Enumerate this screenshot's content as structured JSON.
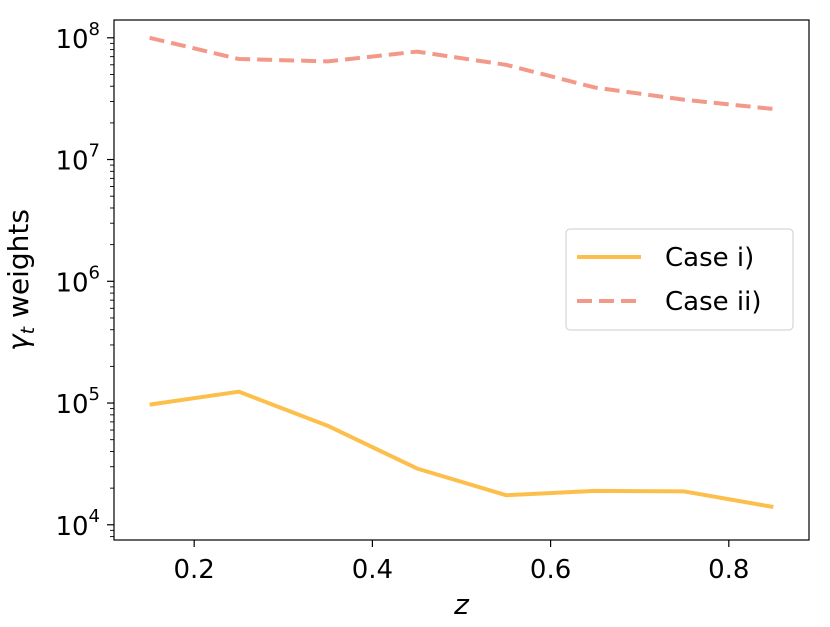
{
  "chart_data": {
    "type": "line",
    "xlabel": "z",
    "ylabel_main": "γ",
    "ylabel_sub": "t",
    "ylabel_rest": " weights",
    "yscale": "log",
    "xlim": [
      0.11,
      0.89
    ],
    "ylim": [
      7500,
      140000000
    ],
    "x_ticks": [
      0.2,
      0.4,
      0.6,
      0.8
    ],
    "x_tick_labels": [
      "0.2",
      "0.4",
      "0.6",
      "0.8"
    ],
    "y_ticks": [
      10000,
      100000,
      1000000,
      10000000,
      100000000
    ],
    "y_tick_labels": [
      {
        "base": "10",
        "exp": "4"
      },
      {
        "base": "10",
        "exp": "5"
      },
      {
        "base": "10",
        "exp": "6"
      },
      {
        "base": "10",
        "exp": "7"
      },
      {
        "base": "10",
        "exp": "8"
      }
    ],
    "grid": false,
    "legend_position": "center-right",
    "series": [
      {
        "name": "Case i)",
        "color": "#fdbf4c",
        "dash": "solid",
        "x": [
          0.15,
          0.25,
          0.35,
          0.45,
          0.55,
          0.65,
          0.75,
          0.85
        ],
        "y": [
          97000,
          124000,
          65000,
          29000,
          17500,
          19000,
          18800,
          14000
        ]
      },
      {
        "name": "Case ii)",
        "color": "#f2998a",
        "dash": "dashed",
        "x": [
          0.15,
          0.25,
          0.35,
          0.45,
          0.55,
          0.65,
          0.75,
          0.85
        ],
        "y": [
          100000000,
          67000000,
          64000000,
          77000000,
          60000000,
          39000000,
          31000000,
          26000000
        ]
      }
    ]
  }
}
